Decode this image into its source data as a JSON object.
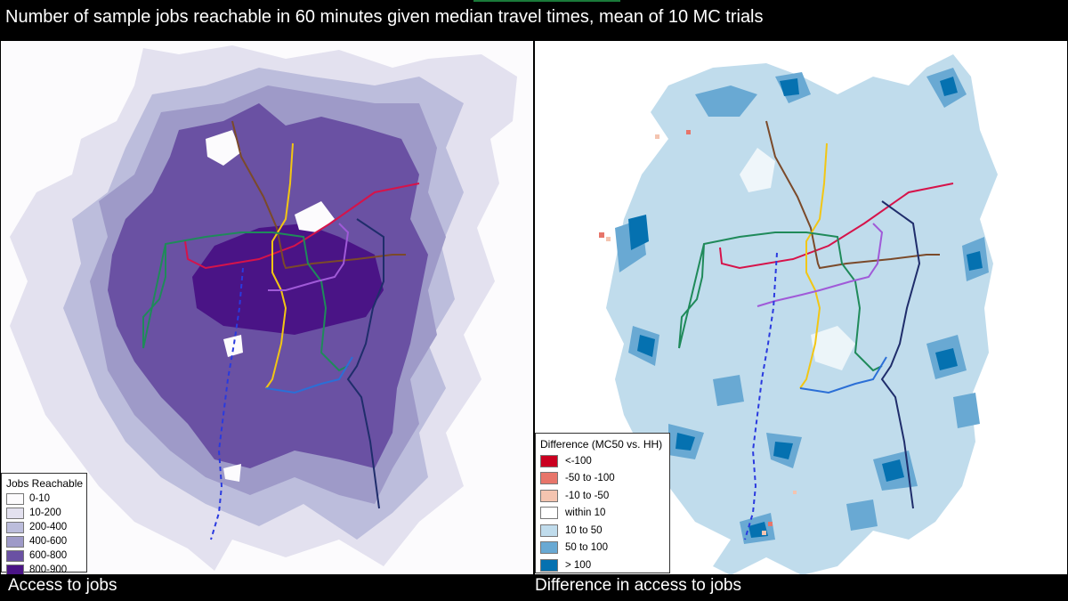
{
  "header": {
    "title": "Number of sample jobs reachable in 60 minutes given median travel times, mean of 10 MC trials"
  },
  "left_panel": {
    "caption": "Access to jobs",
    "legend": {
      "title": "Jobs Reachable",
      "items": [
        {
          "label": "0-10",
          "color": "#fcfbfd"
        },
        {
          "label": "10-200",
          "color": "#e3e1ef"
        },
        {
          "label": "200-400",
          "color": "#bcbddc"
        },
        {
          "label": "400-600",
          "color": "#9e9ac8"
        },
        {
          "label": "600-800",
          "color": "#6a51a3"
        },
        {
          "label": "800-900",
          "color": "#4a1486"
        }
      ]
    }
  },
  "right_panel": {
    "caption": "Difference in access to jobs",
    "legend": {
      "title": "Difference (MC50 vs. HH)",
      "items": [
        {
          "label": "<-100",
          "color": "#ca0020"
        },
        {
          "label": "-50 to -100",
          "color": "#e7756a"
        },
        {
          "label": "-10 to -50",
          "color": "#f4c4b0"
        },
        {
          "label": "within 10",
          "color": "#ffffff"
        },
        {
          "label": "10 to 50",
          "color": "#c0dcec"
        },
        {
          "label": "50 to 100",
          "color": "#69a9d3"
        },
        {
          "label": "> 100",
          "color": "#0571b0"
        }
      ]
    }
  },
  "transit_lines": [
    {
      "name": "line-red",
      "color": "#d6134a"
    },
    {
      "name": "line-brown",
      "color": "#7b4a2a"
    },
    {
      "name": "line-yellow",
      "color": "#f2c614"
    },
    {
      "name": "line-green",
      "color": "#1f8a5a"
    },
    {
      "name": "line-purple",
      "color": "#a05ad8"
    },
    {
      "name": "line-navy",
      "color": "#1f2d6b"
    },
    {
      "name": "line-blue",
      "color": "#2b6fd6"
    },
    {
      "name": "line-blue-dashed",
      "color": "#2a3adf"
    }
  ]
}
